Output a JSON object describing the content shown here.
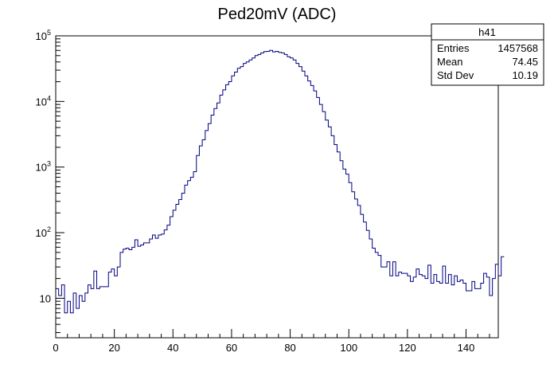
{
  "chart_data": {
    "type": "histogram",
    "title": "Ped20mV (ADC)",
    "xlabel": "",
    "ylabel": "",
    "xlim": [
      0,
      151
    ],
    "ylim": [
      2.5,
      100000
    ],
    "y_scale": "log",
    "grid": false,
    "line_color": "#000080",
    "bin_width": 1,
    "x_ticks": [
      0,
      20,
      40,
      60,
      80,
      100,
      120,
      140
    ],
    "x_tick_labels": [
      "0",
      "20",
      "40",
      "60",
      "80",
      "100",
      "120",
      "140"
    ],
    "y_ticks": [
      10,
      100,
      1000,
      10000,
      100000
    ],
    "y_tick_labels": [
      "10",
      "10^2",
      "10^3",
      "10^4",
      "10^5"
    ],
    "bin_edges_start": 0,
    "values": [
      14,
      11,
      16,
      6,
      9,
      6,
      12,
      7,
      11,
      9,
      12,
      16,
      14,
      26,
      14,
      15,
      15,
      15,
      25,
      28,
      22,
      30,
      50,
      56,
      58,
      55,
      60,
      78,
      62,
      65,
      70,
      70,
      80,
      92,
      82,
      92,
      95,
      110,
      130,
      175,
      220,
      270,
      320,
      400,
      530,
      620,
      700,
      850,
      1500,
      2100,
      2600,
      3600,
      4600,
      6200,
      7800,
      9500,
      12500,
      15000,
      18000,
      20000,
      24500,
      28000,
      32000,
      34000,
      38000,
      40000,
      43000,
      46000,
      50000,
      52000,
      55000,
      57500,
      58000,
      60000,
      57000,
      58000,
      56000,
      55000,
      52000,
      48000,
      46000,
      43000,
      38000,
      34000,
      29000,
      24500,
      20500,
      17500,
      14500,
      11500,
      9000,
      7000,
      5200,
      4100,
      3000,
      2200,
      1700,
      1250,
      930,
      780,
      580,
      420,
      325,
      260,
      190,
      145,
      108,
      80,
      58,
      50,
      45,
      30,
      30,
      36,
      22,
      36,
      22,
      25,
      24,
      24,
      22,
      18,
      21,
      28,
      23,
      22,
      20,
      32,
      17,
      23,
      18,
      17,
      31,
      17,
      23,
      16,
      22,
      18,
      19,
      17,
      13,
      13,
      18,
      14,
      14,
      17,
      24,
      21,
      11,
      20,
      33,
      22,
      43
    ],
    "stats_box": {
      "name": "h41",
      "rows": [
        {
          "label": "Entries",
          "value": "1457568"
        },
        {
          "label": "Mean",
          "value": "74.45"
        },
        {
          "label": "Std Dev",
          "value": "10.19"
        }
      ]
    }
  }
}
